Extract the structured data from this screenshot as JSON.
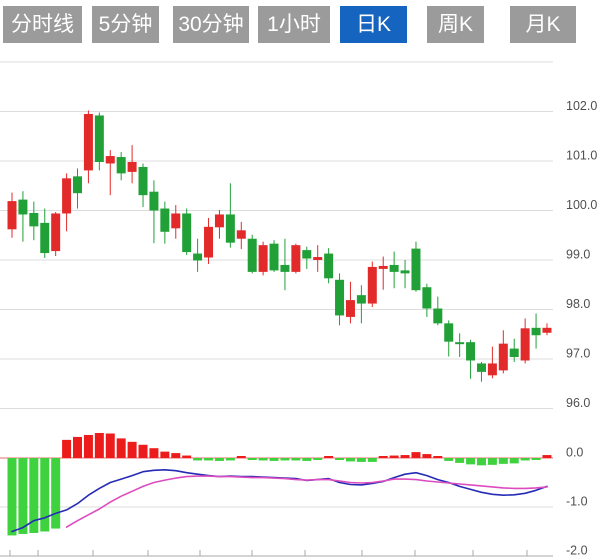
{
  "tabs": {
    "items": [
      {
        "label": "分时线",
        "active": false
      },
      {
        "label": "5分钟",
        "active": false
      },
      {
        "label": "30分钟",
        "active": false
      },
      {
        "label": "1小时",
        "active": false
      },
      {
        "label": "日K",
        "active": true
      },
      {
        "label": "周K",
        "active": false
      },
      {
        "label": "月K",
        "active": false
      }
    ]
  },
  "colors": {
    "up": "#e32a2a",
    "down": "#21a038",
    "macd_up": "#ed1c1c",
    "macd_down": "#3fd23f",
    "dif_line": "#262bb5",
    "dea_line": "#dd4bc0",
    "grid": "#dcdcdc",
    "zero_line": "#ef6a6a",
    "bottom_axis": "#a8a8a8",
    "axis_label": "#4f4f4f",
    "tab_bg": "#9b9b9b",
    "tab_active_bg": "#1565c0"
  },
  "price_axis": {
    "labels": [
      "102.0",
      "101.0",
      "100.0",
      "99.0",
      "98.0",
      "97.0",
      "96.0"
    ],
    "values": [
      102,
      101,
      100,
      99,
      98,
      97,
      96
    ]
  },
  "macd_axis": {
    "labels": [
      "0.0",
      "-1.0",
      "-2.0"
    ],
    "values": [
      0,
      -1,
      -2
    ]
  },
  "chart_data": {
    "type": "candlestick+macd",
    "title": "",
    "candle_format": "[open, high, low, close]",
    "price_range": [
      96,
      103
    ],
    "macd_range": [
      -2,
      0.6
    ],
    "candles": [
      [
        99.62,
        100.36,
        99.45,
        100.19
      ],
      [
        100.22,
        100.39,
        99.37,
        99.92
      ],
      [
        99.95,
        100.18,
        99.4,
        99.68
      ],
      [
        99.75,
        100.04,
        99.04,
        99.14
      ],
      [
        99.18,
        99.97,
        99.08,
        99.94
      ],
      [
        99.94,
        100.75,
        99.58,
        100.65
      ],
      [
        100.69,
        100.85,
        100.04,
        100.35
      ],
      [
        100.81,
        102.02,
        100.55,
        101.95
      ],
      [
        101.92,
        101.98,
        100.81,
        100.98
      ],
      [
        100.95,
        101.22,
        100.31,
        101.1
      ],
      [
        101.08,
        101.18,
        100.61,
        100.75
      ],
      [
        100.78,
        101.32,
        100.55,
        100.98
      ],
      [
        100.88,
        100.95,
        100.07,
        100.31
      ],
      [
        100.38,
        100.61,
        99.34,
        100.0
      ],
      [
        100.04,
        100.18,
        99.33,
        99.57
      ],
      [
        99.64,
        100.11,
        99.43,
        99.94
      ],
      [
        99.94,
        100.04,
        99.1,
        99.16
      ],
      [
        99.13,
        99.43,
        98.76,
        98.99
      ],
      [
        99.05,
        99.85,
        98.92,
        99.67
      ],
      [
        99.66,
        100.01,
        99.43,
        99.92
      ],
      [
        99.92,
        100.55,
        99.25,
        99.35
      ],
      [
        99.43,
        99.77,
        99.22,
        99.6
      ],
      [
        99.43,
        99.51,
        98.73,
        98.76
      ],
      [
        98.76,
        99.37,
        98.69,
        99.3
      ],
      [
        99.33,
        99.4,
        98.76,
        98.79
      ],
      [
        98.9,
        99.43,
        98.39,
        98.76
      ],
      [
        98.76,
        99.33,
        98.73,
        99.3
      ],
      [
        99.2,
        99.27,
        98.82,
        99.03
      ],
      [
        99.0,
        99.3,
        98.76,
        99.06
      ],
      [
        99.13,
        99.24,
        98.53,
        98.63
      ],
      [
        98.6,
        98.73,
        97.68,
        97.88
      ],
      [
        97.85,
        98.56,
        97.72,
        98.19
      ],
      [
        98.29,
        98.49,
        97.72,
        98.12
      ],
      [
        98.12,
        98.97,
        98.05,
        98.86
      ],
      [
        98.82,
        99.07,
        98.4,
        98.88
      ],
      [
        98.9,
        99.17,
        98.43,
        98.76
      ],
      [
        98.79,
        99.0,
        98.43,
        98.73
      ],
      [
        99.23,
        99.37,
        98.36,
        98.39
      ],
      [
        98.45,
        98.52,
        97.85,
        98.02
      ],
      [
        98.02,
        98.26,
        97.68,
        97.72
      ],
      [
        97.72,
        97.78,
        97.05,
        97.35
      ],
      [
        97.34,
        97.52,
        97.04,
        97.3
      ],
      [
        97.34,
        97.39,
        96.6,
        96.97
      ],
      [
        96.91,
        96.94,
        96.54,
        96.74
      ],
      [
        96.67,
        97.25,
        96.61,
        96.91
      ],
      [
        96.77,
        97.58,
        96.71,
        97.31
      ],
      [
        97.21,
        97.41,
        96.94,
        97.04
      ],
      [
        96.97,
        97.82,
        96.91,
        97.62
      ],
      [
        97.63,
        97.92,
        97.21,
        97.48
      ],
      [
        97.53,
        97.72,
        97.48,
        97.63
      ]
    ],
    "macd": {
      "histogram": [
        -1.58,
        -1.55,
        -1.53,
        -1.5,
        -1.44,
        0.37,
        0.43,
        0.47,
        0.51,
        0.5,
        0.4,
        0.33,
        0.27,
        0.2,
        0.13,
        0.1,
        0.05,
        -0.05,
        -0.05,
        -0.06,
        -0.05,
        0.03,
        -0.02,
        -0.05,
        -0.06,
        -0.05,
        -0.05,
        -0.06,
        -0.02,
        0.04,
        -0.03,
        -0.07,
        -0.08,
        -0.08,
        0.02,
        0.05,
        0.06,
        0.12,
        0.08,
        0.03,
        -0.06,
        -0.1,
        -0.13,
        -0.15,
        -0.14,
        -0.12,
        -0.11,
        -0.05,
        -0.04,
        0.06
      ],
      "dif": [
        -1.5,
        -1.42,
        -1.28,
        -1.22,
        -1.13,
        -1.06,
        -0.93,
        -0.76,
        -0.62,
        -0.5,
        -0.43,
        -0.36,
        -0.28,
        -0.25,
        -0.24,
        -0.26,
        -0.3,
        -0.33,
        -0.36,
        -0.38,
        -0.37,
        -0.38,
        -0.38,
        -0.39,
        -0.4,
        -0.41,
        -0.42,
        -0.46,
        -0.44,
        -0.42,
        -0.5,
        -0.54,
        -0.55,
        -0.52,
        -0.48,
        -0.4,
        -0.33,
        -0.3,
        -0.36,
        -0.44,
        -0.5,
        -0.58,
        -0.64,
        -0.7,
        -0.74,
        -0.76,
        -0.75,
        -0.72,
        -0.66,
        -0.58
      ],
      "dea": [
        null,
        null,
        null,
        null,
        null,
        -1.41,
        -1.28,
        -1.16,
        -1.04,
        -0.9,
        -0.78,
        -0.68,
        -0.58,
        -0.5,
        -0.45,
        -0.41,
        -0.38,
        -0.37,
        -0.37,
        -0.38,
        -0.38,
        -0.39,
        -0.4,
        -0.4,
        -0.41,
        -0.42,
        -0.44,
        -0.45,
        -0.44,
        -0.44,
        -0.47,
        -0.5,
        -0.51,
        -0.5,
        -0.47,
        -0.43,
        -0.43,
        -0.44,
        -0.47,
        -0.49,
        -0.51,
        -0.53,
        -0.55,
        -0.57,
        -0.59,
        -0.61,
        -0.62,
        -0.62,
        -0.61,
        -0.59
      ]
    },
    "x_ticks": [
      10,
      38,
      93,
      148,
      200,
      252,
      305,
      362,
      415,
      473,
      527
    ]
  }
}
